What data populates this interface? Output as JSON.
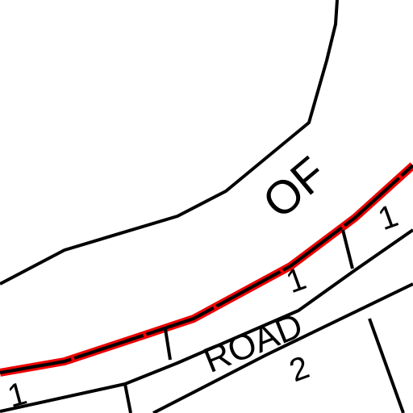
{
  "labels": {
    "of": "OF",
    "road": "ROAD",
    "parcel_a": "1",
    "parcel_b": "1",
    "parcel_c": "2",
    "parcel_d": "1"
  }
}
